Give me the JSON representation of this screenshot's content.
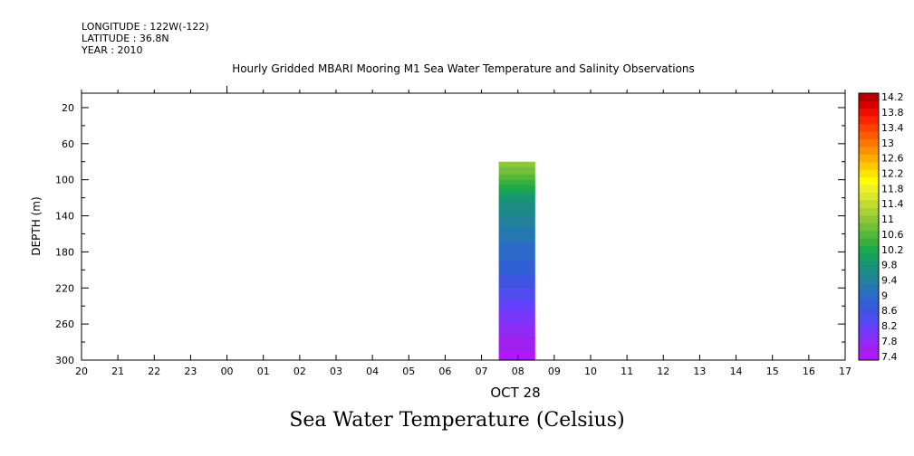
{
  "header": {
    "longitude": "LONGITUDE : 122W(-122)",
    "latitude": "LATITUDE : 36.8N",
    "year": "YEAR : 2010",
    "plot_title": "Hourly Gridded MBARI Mooring M1 Sea Water Temperature and Salinity Observations",
    "main_title": "Sea Water Temperature (Celsius)"
  },
  "chart_data": {
    "type": "heatmap",
    "title": "Hourly Gridded MBARI Mooring M1 Sea Water Temperature and Salinity Observations",
    "xlabel": "OCT 28",
    "ylabel": "DEPTH (m)",
    "x_tick_labels": [
      "20",
      "21",
      "22",
      "23",
      "00",
      "01",
      "02",
      "03",
      "04",
      "05",
      "06",
      "07",
      "08",
      "09",
      "10",
      "11",
      "12",
      "13",
      "14",
      "15",
      "16",
      "17"
    ],
    "y_ticks": [
      20,
      60,
      100,
      140,
      180,
      220,
      260,
      300
    ],
    "ylim": [
      4,
      300
    ],
    "y_inverted": true,
    "data_column": {
      "time_label": "08",
      "depth_range": [
        80,
        300
      ],
      "temperature_profile": [
        {
          "depth": 80,
          "temp": 11.2
        },
        {
          "depth": 100,
          "temp": 10.6
        },
        {
          "depth": 120,
          "temp": 9.9
        },
        {
          "depth": 140,
          "temp": 9.6
        },
        {
          "depth": 160,
          "temp": 9.3
        },
        {
          "depth": 180,
          "temp": 9.1
        },
        {
          "depth": 200,
          "temp": 8.9
        },
        {
          "depth": 220,
          "temp": 8.6
        },
        {
          "depth": 240,
          "temp": 8.3
        },
        {
          "depth": 260,
          "temp": 8.0
        },
        {
          "depth": 280,
          "temp": 7.7
        },
        {
          "depth": 300,
          "temp": 7.5
        }
      ]
    },
    "colorbar": {
      "levels": [
        7.4,
        7.6,
        7.8,
        8.0,
        8.2,
        8.4,
        8.6,
        8.8,
        9.0,
        9.2,
        9.4,
        9.6,
        9.8,
        10.0,
        10.2,
        10.4,
        10.6,
        10.8,
        11.0,
        11.2,
        11.4,
        11.6,
        11.8,
        12.0,
        12.2,
        12.4,
        12.6,
        12.8,
        13.0,
        13.2,
        13.4,
        13.6,
        13.8,
        14.0,
        14.2,
        14.4
      ],
      "labels": [
        "7.4",
        "7.8",
        "8.2",
        "8.6",
        "9",
        "9.4",
        "9.8",
        "10.2",
        "10.6",
        "11",
        "11.4",
        "11.8",
        "12.2",
        "12.6",
        "13",
        "13.4",
        "13.8",
        "14.2"
      ],
      "colors": [
        "#b217ff",
        "#a020f0",
        "#8f2bf5",
        "#7a36f8",
        "#6441ff",
        "#504cf0",
        "#3d55e0",
        "#3160d6",
        "#2b6ac8",
        "#2676b3",
        "#22829e",
        "#1c8b88",
        "#179572",
        "#16a05d",
        "#1fa84a",
        "#3aaf3c",
        "#56b83a",
        "#72c03a",
        "#8ec836",
        "#a8d233",
        "#c2dc30",
        "#dae82c",
        "#f0f028",
        "#ffff00",
        "#ffe400",
        "#ffc800",
        "#ffab00",
        "#ff9000",
        "#ff7600",
        "#ff5c00",
        "#ff4000",
        "#ff2400",
        "#f01000",
        "#d60000",
        "#b00000"
      ]
    }
  }
}
